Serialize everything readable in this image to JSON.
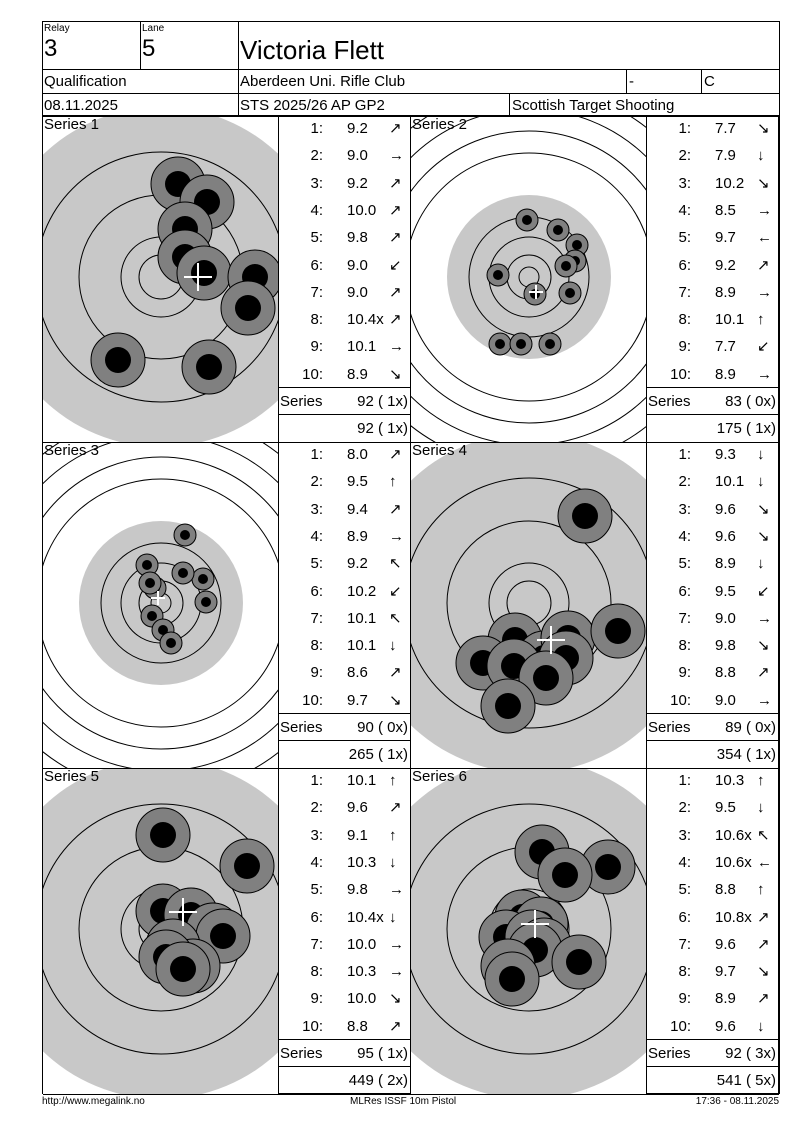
{
  "header": {
    "relay_label": "Relay",
    "relay": "3",
    "lane_label": "Lane",
    "lane": "5",
    "name": "Victoria Flett",
    "stage": "Qualification",
    "club": "Aberdeen Uni. Rifle Club",
    "dash": "-",
    "class": "C",
    "date": "08.11.2025",
    "competition": "STS 2025/26 AP GP2",
    "organizer": "Scottish Target Shooting"
  },
  "series_label": "Series",
  "series": [
    {
      "title": "Series 1",
      "total": "92 ( 1x)",
      "cumulative": "92 ( 1x)",
      "target": "closeup",
      "shots": [
        {
          "no": "1:",
          "score": "9.2",
          "dir": "ne"
        },
        {
          "no": "2:",
          "score": "9.0",
          "dir": "e"
        },
        {
          "no": "3:",
          "score": "9.2",
          "dir": "ne"
        },
        {
          "no": "4:",
          "score": "10.0",
          "dir": "ne"
        },
        {
          "no": "5:",
          "score": "9.8",
          "dir": "ne"
        },
        {
          "no": "6:",
          "score": "9.0",
          "dir": "sw"
        },
        {
          "no": "7:",
          "score": "9.0",
          "dir": "ne"
        },
        {
          "no": "8:",
          "score": "10.4x",
          "dir": "ne"
        },
        {
          "no": "9:",
          "score": "10.1",
          "dir": "e"
        },
        {
          "no": "10:",
          "score": "8.9",
          "dir": "se"
        }
      ]
    },
    {
      "title": "Series 2",
      "total": "83 ( 0x)",
      "cumulative": "175 ( 1x)",
      "target": "full",
      "shots": [
        {
          "no": "1:",
          "score": "7.7",
          "dir": "se"
        },
        {
          "no": "2:",
          "score": "7.9",
          "dir": "s"
        },
        {
          "no": "3:",
          "score": "10.2",
          "dir": "se"
        },
        {
          "no": "4:",
          "score": "8.5",
          "dir": "e"
        },
        {
          "no": "5:",
          "score": "9.7",
          "dir": "w"
        },
        {
          "no": "6:",
          "score": "9.2",
          "dir": "ne"
        },
        {
          "no": "7:",
          "score": "8.9",
          "dir": "e"
        },
        {
          "no": "8:",
          "score": "10.1",
          "dir": "n"
        },
        {
          "no": "9:",
          "score": "7.7",
          "dir": "sw"
        },
        {
          "no": "10:",
          "score": "8.9",
          "dir": "e"
        }
      ]
    },
    {
      "title": "Series 3",
      "total": "90 ( 0x)",
      "cumulative": "265 ( 1x)",
      "target": "full",
      "shots": [
        {
          "no": "1:",
          "score": "8.0",
          "dir": "ne"
        },
        {
          "no": "2:",
          "score": "9.5",
          "dir": "n"
        },
        {
          "no": "3:",
          "score": "9.4",
          "dir": "ne"
        },
        {
          "no": "4:",
          "score": "8.9",
          "dir": "e"
        },
        {
          "no": "5:",
          "score": "9.2",
          "dir": "nw"
        },
        {
          "no": "6:",
          "score": "10.2",
          "dir": "sw"
        },
        {
          "no": "7:",
          "score": "10.1",
          "dir": "nw"
        },
        {
          "no": "8:",
          "score": "10.1",
          "dir": "s"
        },
        {
          "no": "9:",
          "score": "8.6",
          "dir": "ne"
        },
        {
          "no": "10:",
          "score": "9.7",
          "dir": "se"
        }
      ]
    },
    {
      "title": "Series 4",
      "total": "89 ( 0x)",
      "cumulative": "354 ( 1x)",
      "target": "closeup",
      "shots": [
        {
          "no": "1:",
          "score": "9.3",
          "dir": "s"
        },
        {
          "no": "2:",
          "score": "10.1",
          "dir": "s"
        },
        {
          "no": "3:",
          "score": "9.6",
          "dir": "se"
        },
        {
          "no": "4:",
          "score": "9.6",
          "dir": "se"
        },
        {
          "no": "5:",
          "score": "8.9",
          "dir": "s"
        },
        {
          "no": "6:",
          "score": "9.5",
          "dir": "sw"
        },
        {
          "no": "7:",
          "score": "9.0",
          "dir": "e"
        },
        {
          "no": "8:",
          "score": "9.8",
          "dir": "se"
        },
        {
          "no": "9:",
          "score": "8.8",
          "dir": "ne"
        },
        {
          "no": "10:",
          "score": "9.0",
          "dir": "e"
        }
      ]
    },
    {
      "title": "Series 5",
      "total": "95 ( 1x)",
      "cumulative": "449 ( 2x)",
      "target": "closeup",
      "shots": [
        {
          "no": "1:",
          "score": "10.1",
          "dir": "n"
        },
        {
          "no": "2:",
          "score": "9.6",
          "dir": "ne"
        },
        {
          "no": "3:",
          "score": "9.1",
          "dir": "n"
        },
        {
          "no": "4:",
          "score": "10.3",
          "dir": "s"
        },
        {
          "no": "5:",
          "score": "9.8",
          "dir": "e"
        },
        {
          "no": "6:",
          "score": "10.4x",
          "dir": "s"
        },
        {
          "no": "7:",
          "score": "10.0",
          "dir": "e"
        },
        {
          "no": "8:",
          "score": "10.3",
          "dir": "e"
        },
        {
          "no": "9:",
          "score": "10.0",
          "dir": "se"
        },
        {
          "no": "10:",
          "score": "8.8",
          "dir": "ne"
        }
      ]
    },
    {
      "title": "Series 6",
      "total": "92 ( 3x)",
      "cumulative": "541 ( 5x)",
      "target": "closeup",
      "shots": [
        {
          "no": "1:",
          "score": "10.3",
          "dir": "n"
        },
        {
          "no": "2:",
          "score": "9.5",
          "dir": "s"
        },
        {
          "no": "3:",
          "score": "10.6x",
          "dir": "nw"
        },
        {
          "no": "4:",
          "score": "10.6x",
          "dir": "w"
        },
        {
          "no": "5:",
          "score": "8.8",
          "dir": "n"
        },
        {
          "no": "6:",
          "score": "10.8x",
          "dir": "ne"
        },
        {
          "no": "7:",
          "score": "9.6",
          "dir": "ne"
        },
        {
          "no": "8:",
          "score": "9.7",
          "dir": "se"
        },
        {
          "no": "9:",
          "score": "8.9",
          "dir": "ne"
        },
        {
          "no": "10:",
          "score": "9.6",
          "dir": "s"
        }
      ]
    }
  ],
  "footer": {
    "url": "http://www.megalink.no",
    "system": "MLRes ISSF 10m Pistol",
    "timestamp": "17:36 - 08.11.2025"
  }
}
